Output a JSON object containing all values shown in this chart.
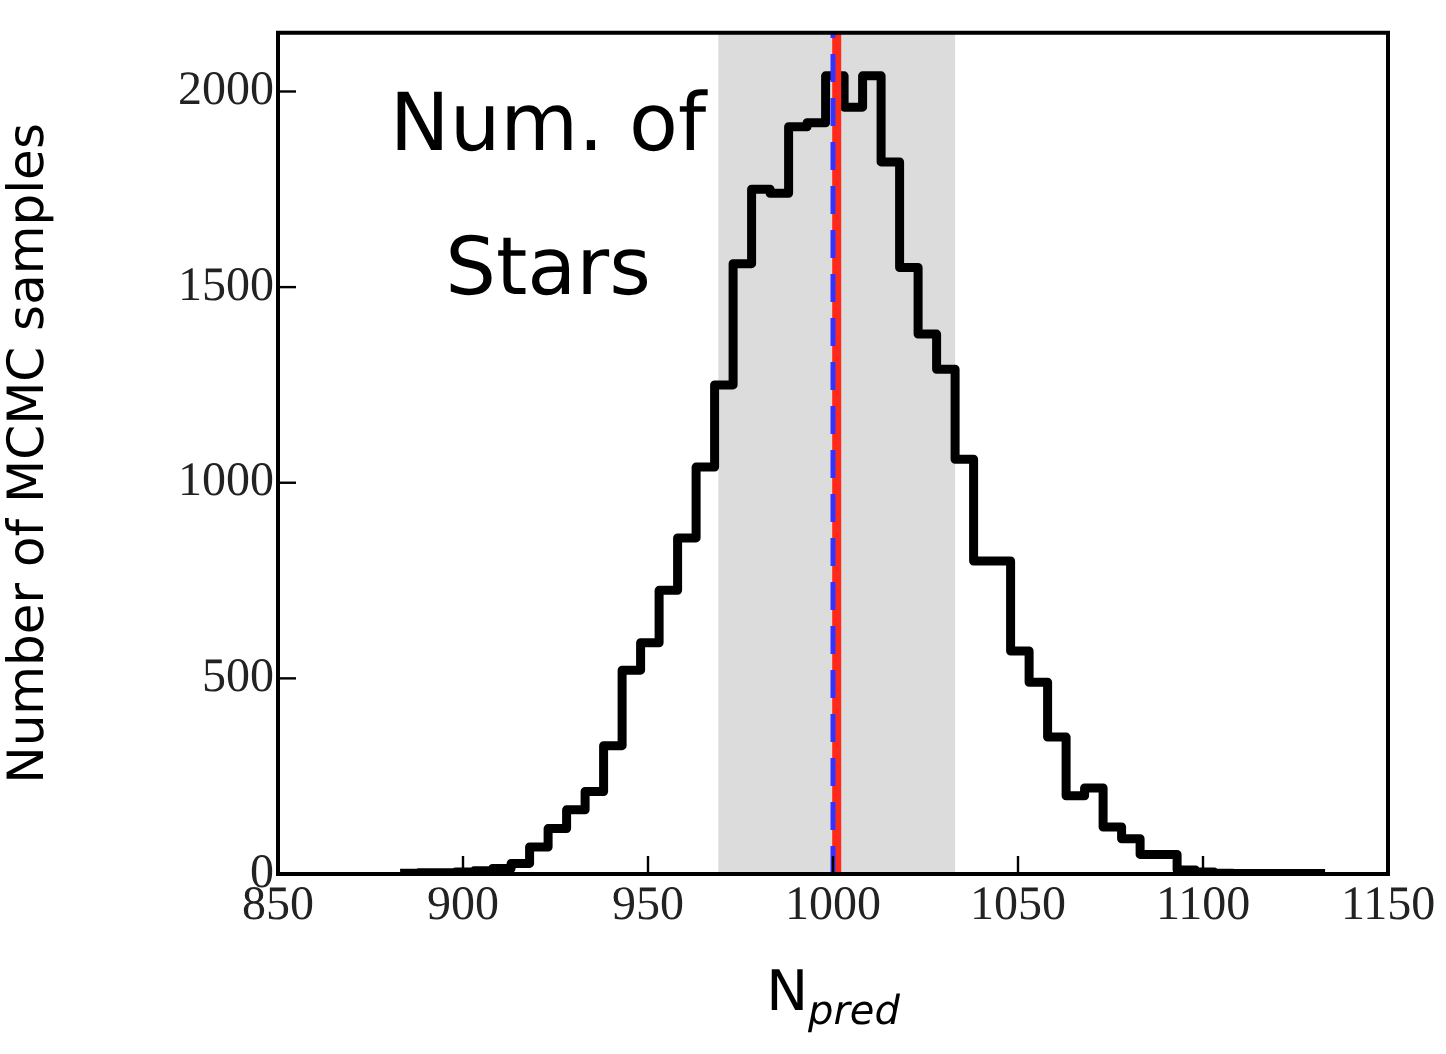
{
  "chart_data": {
    "type": "histogram",
    "xlabel": "N$_{pred}$",
    "ylabel": "Number of MCMC samples",
    "annotations": [
      "Num. of\nStars"
    ],
    "bins": [
      883,
      888,
      893,
      898,
      903,
      908,
      913,
      918,
      923,
      928,
      933,
      938,
      943,
      948,
      953,
      958,
      963,
      968,
      973,
      978,
      983,
      988,
      993,
      998,
      1003,
      1008,
      1013,
      1018,
      1023,
      1028,
      1033,
      1038,
      1043,
      1048,
      1053,
      1058,
      1063,
      1068,
      1073,
      1078,
      1083,
      1088,
      1093,
      1098,
      1103,
      1108,
      1113,
      1118,
      1123,
      1128,
      1133
    ],
    "values": [
      2,
      3,
      3,
      5,
      8,
      14,
      27,
      69,
      116,
      164,
      211,
      328,
      521,
      591,
      725,
      859,
      1040,
      1250,
      1560,
      1750,
      1740,
      1910,
      1920,
      2040,
      1960,
      2040,
      1820,
      1550,
      1380,
      1290,
      1060,
      800,
      800,
      570,
      490,
      350,
      200,
      220,
      120,
      90,
      50,
      50,
      10,
      5,
      2,
      1,
      1,
      1,
      1,
      1
    ],
    "color": "#000000",
    "xlim": [
      850,
      1150
    ],
    "xticks": [
      850,
      900,
      950,
      1000,
      1050,
      1100,
      1150
    ],
    "ylim": [
      0,
      2150
    ],
    "yticks": [
      0,
      500,
      1000,
      1500,
      2000
    ],
    "bands": [
      {
        "axis": "x",
        "from": 969,
        "to": 1033,
        "color": "#dcdcdc"
      }
    ],
    "ref_lines": [
      {
        "axis": "x",
        "value": 1001,
        "color": "#ff2a1a",
        "line_style": "solid"
      },
      {
        "axis": "x",
        "value": 1000,
        "color": "#3333ff",
        "line_style": "dashed"
      }
    ]
  }
}
